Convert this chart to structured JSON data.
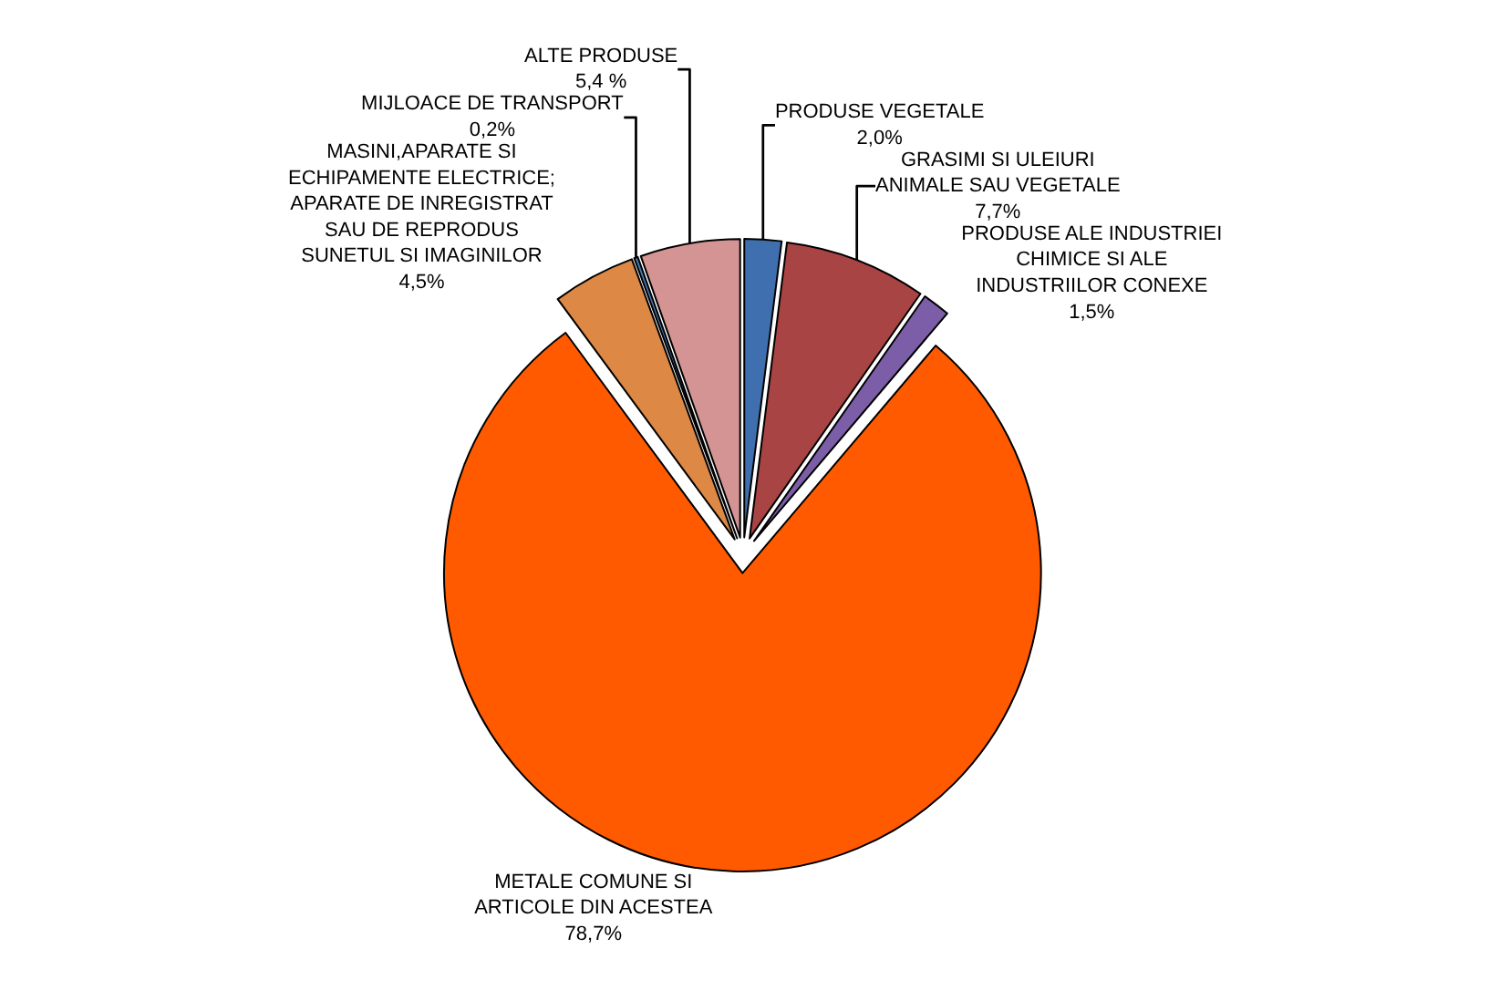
{
  "chart_data": {
    "type": "pie",
    "categories": [
      "PRODUSE VEGETALE",
      "GRASIMI SI ULEIURI ANIMALE SAU VEGETALE",
      "PRODUSE ALE INDUSTRIEI CHIMICE SI ALE INDUSTRIILOR CONEXE",
      "METALE COMUNE SI ARTICOLE DIN ACESTEA",
      "MASINI,APARATE SI ECHIPAMENTE ELECTRICE; APARATE DE INREGISTRAT SAU DE REPRODUS SUNETUL SI IMAGINILOR",
      "MIJLOACE DE TRANSPORT",
      "ALTE PRODUSE"
    ],
    "values": [
      2.0,
      7.7,
      1.5,
      78.7,
      4.5,
      0.2,
      5.4
    ],
    "value_labels": [
      "2,0%",
      "7,7%",
      "1,5%",
      "78,7%",
      "4,5%",
      "0,2%",
      "5,4 %"
    ],
    "colors": [
      "#3f6fae",
      "#a94444",
      "#7b5ea7",
      "#ff5a00",
      "#dd8844",
      "#4a7ab8",
      "#d49494"
    ],
    "legend": false
  }
}
